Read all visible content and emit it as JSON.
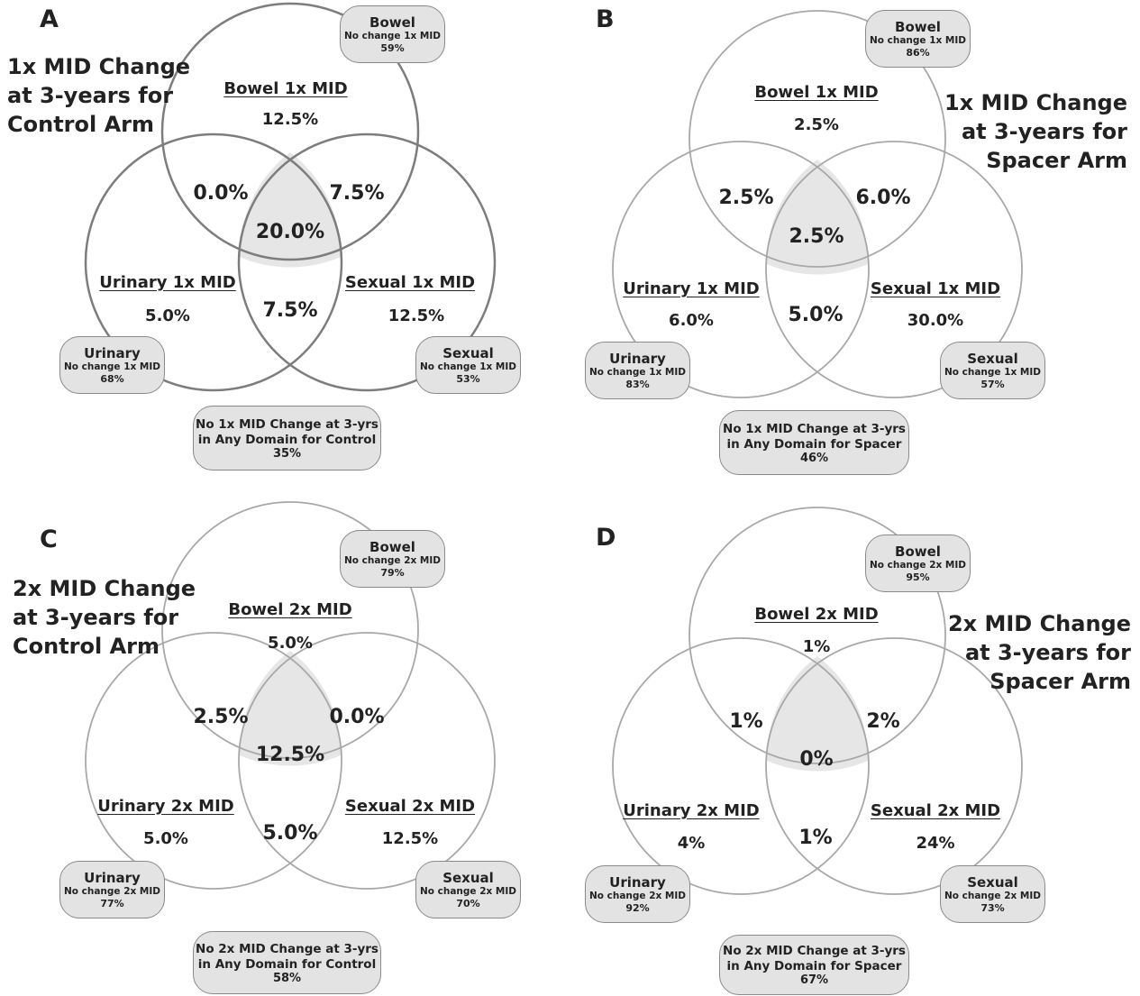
{
  "panels": [
    {
      "letter": "A",
      "title_lines": [
        "1x MID Change",
        "at 3-years for",
        "Control Arm"
      ],
      "bowel": {
        "label": "Bowel 1x MID",
        "value": "12.5%"
      },
      "urinary": {
        "label": "Urinary 1x MID",
        "value": "5.0%"
      },
      "sexual": {
        "label": "Sexual 1x MID",
        "value": "12.5%"
      },
      "bowel_urinary": "0.0%",
      "bowel_sexual": "7.5%",
      "urinary_sexual": "7.5%",
      "center": "20.0%",
      "bubble_bowel": {
        "title": "Bowel",
        "sub": "No change 1x MID",
        "pct": "59%"
      },
      "bubble_urinary": {
        "title": "Urinary",
        "sub": "No change 1x MID",
        "pct": "68%"
      },
      "bubble_sexual": {
        "title": "Sexual",
        "sub": "No change 1x MID",
        "pct": "53%"
      },
      "bubble_none": {
        "line1": "No 1x MID Change at 3-yrs",
        "line2": "in Any Domain for Control",
        "pct": "35%"
      },
      "circle_color": "#7d7d7d"
    },
    {
      "letter": "B",
      "title_lines": [
        "1x MID Change",
        "at 3-years for",
        "Spacer Arm"
      ],
      "bowel": {
        "label": "Bowel 1x MID",
        "value": "2.5%"
      },
      "urinary": {
        "label": "Urinary 1x MID",
        "value": "6.0%"
      },
      "sexual": {
        "label": "Sexual 1x MID",
        "value": "30.0%"
      },
      "bowel_urinary": "2.5%",
      "bowel_sexual": "6.0%",
      "urinary_sexual": "5.0%",
      "center": "2.5%",
      "bubble_bowel": {
        "title": "Bowel",
        "sub": "No change 1x MID",
        "pct": "86%"
      },
      "bubble_urinary": {
        "title": "Urinary",
        "sub": "No change 1x MID",
        "pct": "83%"
      },
      "bubble_sexual": {
        "title": "Sexual",
        "sub": "No change 1x MID",
        "pct": "57%"
      },
      "bubble_none": {
        "line1": "No 1x MID Change at 3-yrs",
        "line2": "in Any Domain for Spacer",
        "pct": "46%"
      },
      "circle_color": "#a8a8a8"
    },
    {
      "letter": "C",
      "title_lines": [
        "2x MID Change",
        "at 3-years for",
        "Control Arm"
      ],
      "bowel": {
        "label": "Bowel 2x MID",
        "value": "5.0%"
      },
      "urinary": {
        "label": "Urinary 2x MID",
        "value": "5.0%"
      },
      "sexual": {
        "label": "Sexual 2x MID",
        "value": "12.5%"
      },
      "bowel_urinary": "2.5%",
      "bowel_sexual": "0.0%",
      "urinary_sexual": "5.0%",
      "center": "12.5%",
      "bubble_bowel": {
        "title": "Bowel",
        "sub": "No change 2x MID",
        "pct": "79%"
      },
      "bubble_urinary": {
        "title": "Urinary",
        "sub": "No change 2x MID",
        "pct": "77%"
      },
      "bubble_sexual": {
        "title": "Sexual",
        "sub": "No change 2x MID",
        "pct": "70%"
      },
      "bubble_none": {
        "line1": "No 2x MID Change at 3-yrs",
        "line2": "in Any Domain for Control",
        "pct": "58%"
      },
      "circle_color": "#a8a8a8"
    },
    {
      "letter": "D",
      "title_lines": [
        "2x MID Change",
        "at 3-years for",
        "Spacer Arm"
      ],
      "bowel": {
        "label": "Bowel 2x MID",
        "value": "1%"
      },
      "urinary": {
        "label": "Urinary 2x MID",
        "value": "4%"
      },
      "sexual": {
        "label": "Sexual 2x MID",
        "value": "24%"
      },
      "bowel_urinary": "1%",
      "bowel_sexual": "2%",
      "urinary_sexual": "1%",
      "center": "0%",
      "bubble_bowel": {
        "title": "Bowel",
        "sub": "No change 2x MID",
        "pct": "95%"
      },
      "bubble_urinary": {
        "title": "Urinary",
        "sub": "No change 2x MID",
        "pct": "92%"
      },
      "bubble_sexual": {
        "title": "Sexual",
        "sub": "No change 2x MID",
        "pct": "73%"
      },
      "bubble_none": {
        "line1": "No 2x MID Change at 3-yrs",
        "line2": "in Any Domain for Spacer",
        "pct": "67%"
      },
      "circle_color": "#a8a8a8"
    }
  ],
  "colors": {
    "overlap_fill": "#e6e6e6",
    "bubble_fill": "#e3e3e3",
    "text": "#222222"
  }
}
